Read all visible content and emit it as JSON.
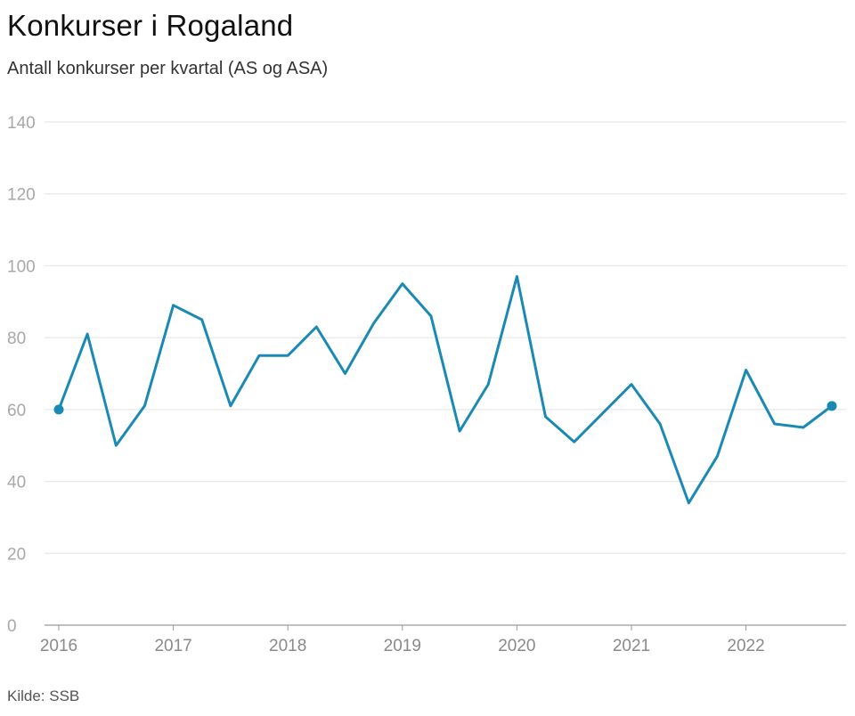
{
  "header": {
    "title": "Konkurser i Rogaland",
    "subtitle": "Antall konkurser per kvartal (AS og ASA)"
  },
  "footer": {
    "source": "Kilde: SSB"
  },
  "chart_data": {
    "type": "line",
    "title": "Konkurser i Rogaland",
    "subtitle": "Antall konkurser per kvartal (AS og ASA)",
    "xlabel": "",
    "ylabel": "",
    "ylim": [
      0,
      140
    ],
    "yticks": [
      0,
      20,
      40,
      60,
      80,
      100,
      120,
      140
    ],
    "xticks": [
      "2016",
      "2017",
      "2018",
      "2019",
      "2020",
      "2021",
      "2022"
    ],
    "grid": true,
    "color": "#1a8ab5",
    "x": [
      "2016K1",
      "2016K2",
      "2016K3",
      "2016K4",
      "2017K1",
      "2017K2",
      "2017K3",
      "2017K4",
      "2018K1",
      "2018K2",
      "2018K3",
      "2018K4",
      "2019K1",
      "2019K2",
      "2019K3",
      "2019K4",
      "2020K1",
      "2020K2",
      "2020K3",
      "2020K4",
      "2021K1",
      "2021K2",
      "2021K3",
      "2021K4",
      "2022K1",
      "2022K2",
      "2022K3",
      "2022K4"
    ],
    "series": [
      {
        "values": [
          60,
          81,
          50,
          61,
          89,
          85,
          61,
          75,
          75,
          83,
          70,
          84,
          95,
          86,
          54,
          67,
          97,
          58,
          51,
          59,
          67,
          56,
          34,
          47,
          71,
          56,
          55,
          61
        ]
      }
    ],
    "endpoint_markers": true
  }
}
